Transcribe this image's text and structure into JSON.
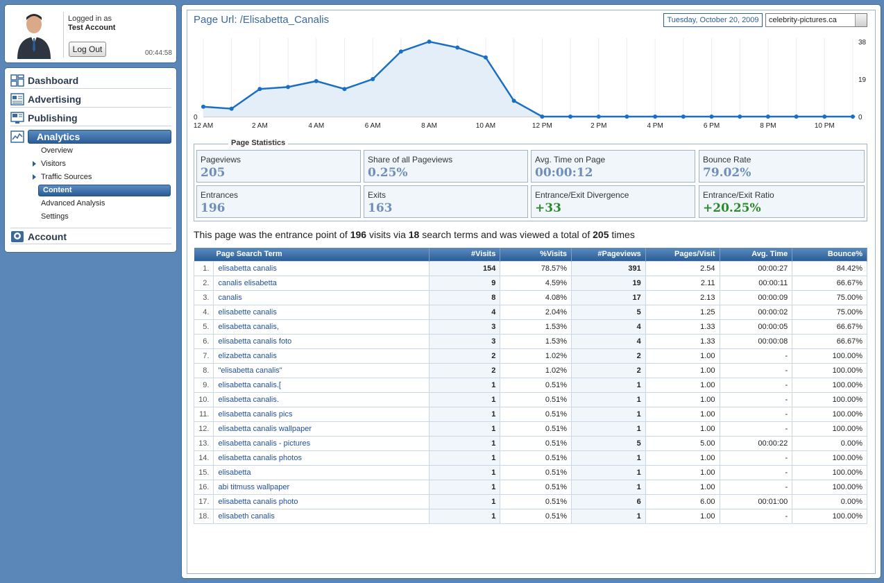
{
  "user": {
    "logged_in_label": "Logged in as",
    "account_name": "Test Account",
    "logout_label": "Log Out",
    "session_time": "00:44:58"
  },
  "nav": {
    "items": [
      {
        "label": "Dashboard",
        "icon": "dashboard-icon"
      },
      {
        "label": "Advertising",
        "icon": "advertising-icon"
      },
      {
        "label": "Publishing",
        "icon": "publishing-icon"
      },
      {
        "label": "Analytics",
        "icon": "analytics-icon",
        "active": true
      },
      {
        "label": "Account",
        "icon": "account-icon"
      }
    ],
    "analytics_sub": [
      {
        "label": "Overview"
      },
      {
        "label": "Visitors",
        "expandable": true
      },
      {
        "label": "Traffic Sources",
        "expandable": true
      },
      {
        "label": "Content",
        "active": true
      },
      {
        "label": "Advanced Analysis"
      },
      {
        "label": "Settings"
      }
    ]
  },
  "header": {
    "page_url": "Page Url: /Elisabetta_Canalis",
    "date": "Tuesday, October 20, 2009",
    "site": "celebrity-pictures.ca"
  },
  "chart_data": {
    "type": "area",
    "x": [
      "12 AM",
      "1 AM",
      "2 AM",
      "3 AM",
      "4 AM",
      "5 AM",
      "6 AM",
      "7 AM",
      "8 AM",
      "9 AM",
      "10 AM",
      "11 AM",
      "12 PM",
      "1 PM",
      "2 PM",
      "3 PM",
      "4 PM",
      "5 PM",
      "6 PM",
      "7 PM",
      "8 PM",
      "9 PM",
      "10 PM",
      "11 PM"
    ],
    "tick_labels": [
      "12 AM",
      "2 AM",
      "4 AM",
      "6 AM",
      "8 AM",
      "10 AM",
      "12 PM",
      "2 PM",
      "4 PM",
      "6 PM",
      "8 PM",
      "10 PM"
    ],
    "values": [
      5,
      4,
      14,
      15,
      18,
      14,
      19,
      33,
      38,
      35,
      30,
      8,
      0,
      0,
      0,
      0,
      0,
      0,
      0,
      0,
      0,
      0,
      0,
      0
    ],
    "ylim": [
      0,
      38
    ],
    "y_ticks_right": [
      "38",
      "19",
      "0"
    ],
    "y_tick_left": "0",
    "grid": true,
    "colors": {
      "line": "#1a6fc4",
      "fill": "#e3eef8"
    }
  },
  "stats": {
    "legend": "Page Statistics",
    "cells": [
      {
        "label": "Pageviews",
        "value": "205"
      },
      {
        "label": "Share of all Pageviews",
        "value": "0.25%"
      },
      {
        "label": "Avg. Time on Page",
        "value": "00:00:12"
      },
      {
        "label": "Bounce Rate",
        "value": "79.02%"
      },
      {
        "label": "Entrances",
        "value": "196"
      },
      {
        "label": "Exits",
        "value": "163"
      },
      {
        "label": "Entrance/Exit Divergence",
        "value": "+33",
        "color": "green"
      },
      {
        "label": "Entrance/Exit Ratio",
        "value": "+20.25%",
        "color": "green"
      }
    ]
  },
  "summary": {
    "t1": "This page was the entrance point of ",
    "visits": "196",
    "t2": " visits via ",
    "terms": "18",
    "t3": " search terms and was viewed a total of ",
    "views": "205",
    "t4": " times"
  },
  "table": {
    "headers": [
      "Page Search Term",
      "#Visits",
      "%Visits",
      "#Pageviews",
      "Pages/Visit",
      "Avg. Time",
      "Bounce%"
    ],
    "rows": [
      [
        "1.",
        "elisabetta canalis",
        "154",
        "78.57%",
        "391",
        "2.54",
        "00:00:27",
        "84.42%"
      ],
      [
        "2.",
        "canalis elisabetta",
        "9",
        "4.59%",
        "19",
        "2.11",
        "00:00:11",
        "66.67%"
      ],
      [
        "3.",
        "canalis",
        "8",
        "4.08%",
        "17",
        "2.13",
        "00:00:09",
        "75.00%"
      ],
      [
        "4.",
        "elisabette canalis",
        "4",
        "2.04%",
        "5",
        "1.25",
        "00:00:02",
        "75.00%"
      ],
      [
        "5.",
        "elisabetta canalis,",
        "3",
        "1.53%",
        "4",
        "1.33",
        "00:00:05",
        "66.67%"
      ],
      [
        "6.",
        "elisabetta canalis foto",
        "3",
        "1.53%",
        "4",
        "1.33",
        "00:00:08",
        "66.67%"
      ],
      [
        "7.",
        "elizabetta canalis",
        "2",
        "1.02%",
        "2",
        "1.00",
        "-",
        "100.00%"
      ],
      [
        "8.",
        "\"elisabetta canalis\"",
        "2",
        "1.02%",
        "2",
        "1.00",
        "-",
        "100.00%"
      ],
      [
        "9.",
        "elisabetta canalis.[",
        "1",
        "0.51%",
        "1",
        "1.00",
        "-",
        "100.00%"
      ],
      [
        "10.",
        "elisabetta canalis.",
        "1",
        "0.51%",
        "1",
        "1.00",
        "-",
        "100.00%"
      ],
      [
        "11.",
        "elisabetta canalis pics",
        "1",
        "0.51%",
        "1",
        "1.00",
        "-",
        "100.00%"
      ],
      [
        "12.",
        "elisabetta canalis wallpaper",
        "1",
        "0.51%",
        "1",
        "1.00",
        "-",
        "100.00%"
      ],
      [
        "13.",
        "elisabetta canalis - pictures",
        "1",
        "0.51%",
        "5",
        "5.00",
        "00:00:22",
        "0.00%"
      ],
      [
        "14.",
        "elisabetta canalis photos",
        "1",
        "0.51%",
        "1",
        "1.00",
        "-",
        "100.00%"
      ],
      [
        "15.",
        "elisabetta",
        "1",
        "0.51%",
        "1",
        "1.00",
        "-",
        "100.00%"
      ],
      [
        "16.",
        "abi titmuss wallpaper",
        "1",
        "0.51%",
        "1",
        "1.00",
        "-",
        "100.00%"
      ],
      [
        "17.",
        "elisabetta canalis photo",
        "1",
        "0.51%",
        "6",
        "6.00",
        "00:01:00",
        "0.00%"
      ],
      [
        "18.",
        "elisabeth canalis",
        "1",
        "0.51%",
        "1",
        "1.00",
        "-",
        "100.00%"
      ]
    ]
  }
}
